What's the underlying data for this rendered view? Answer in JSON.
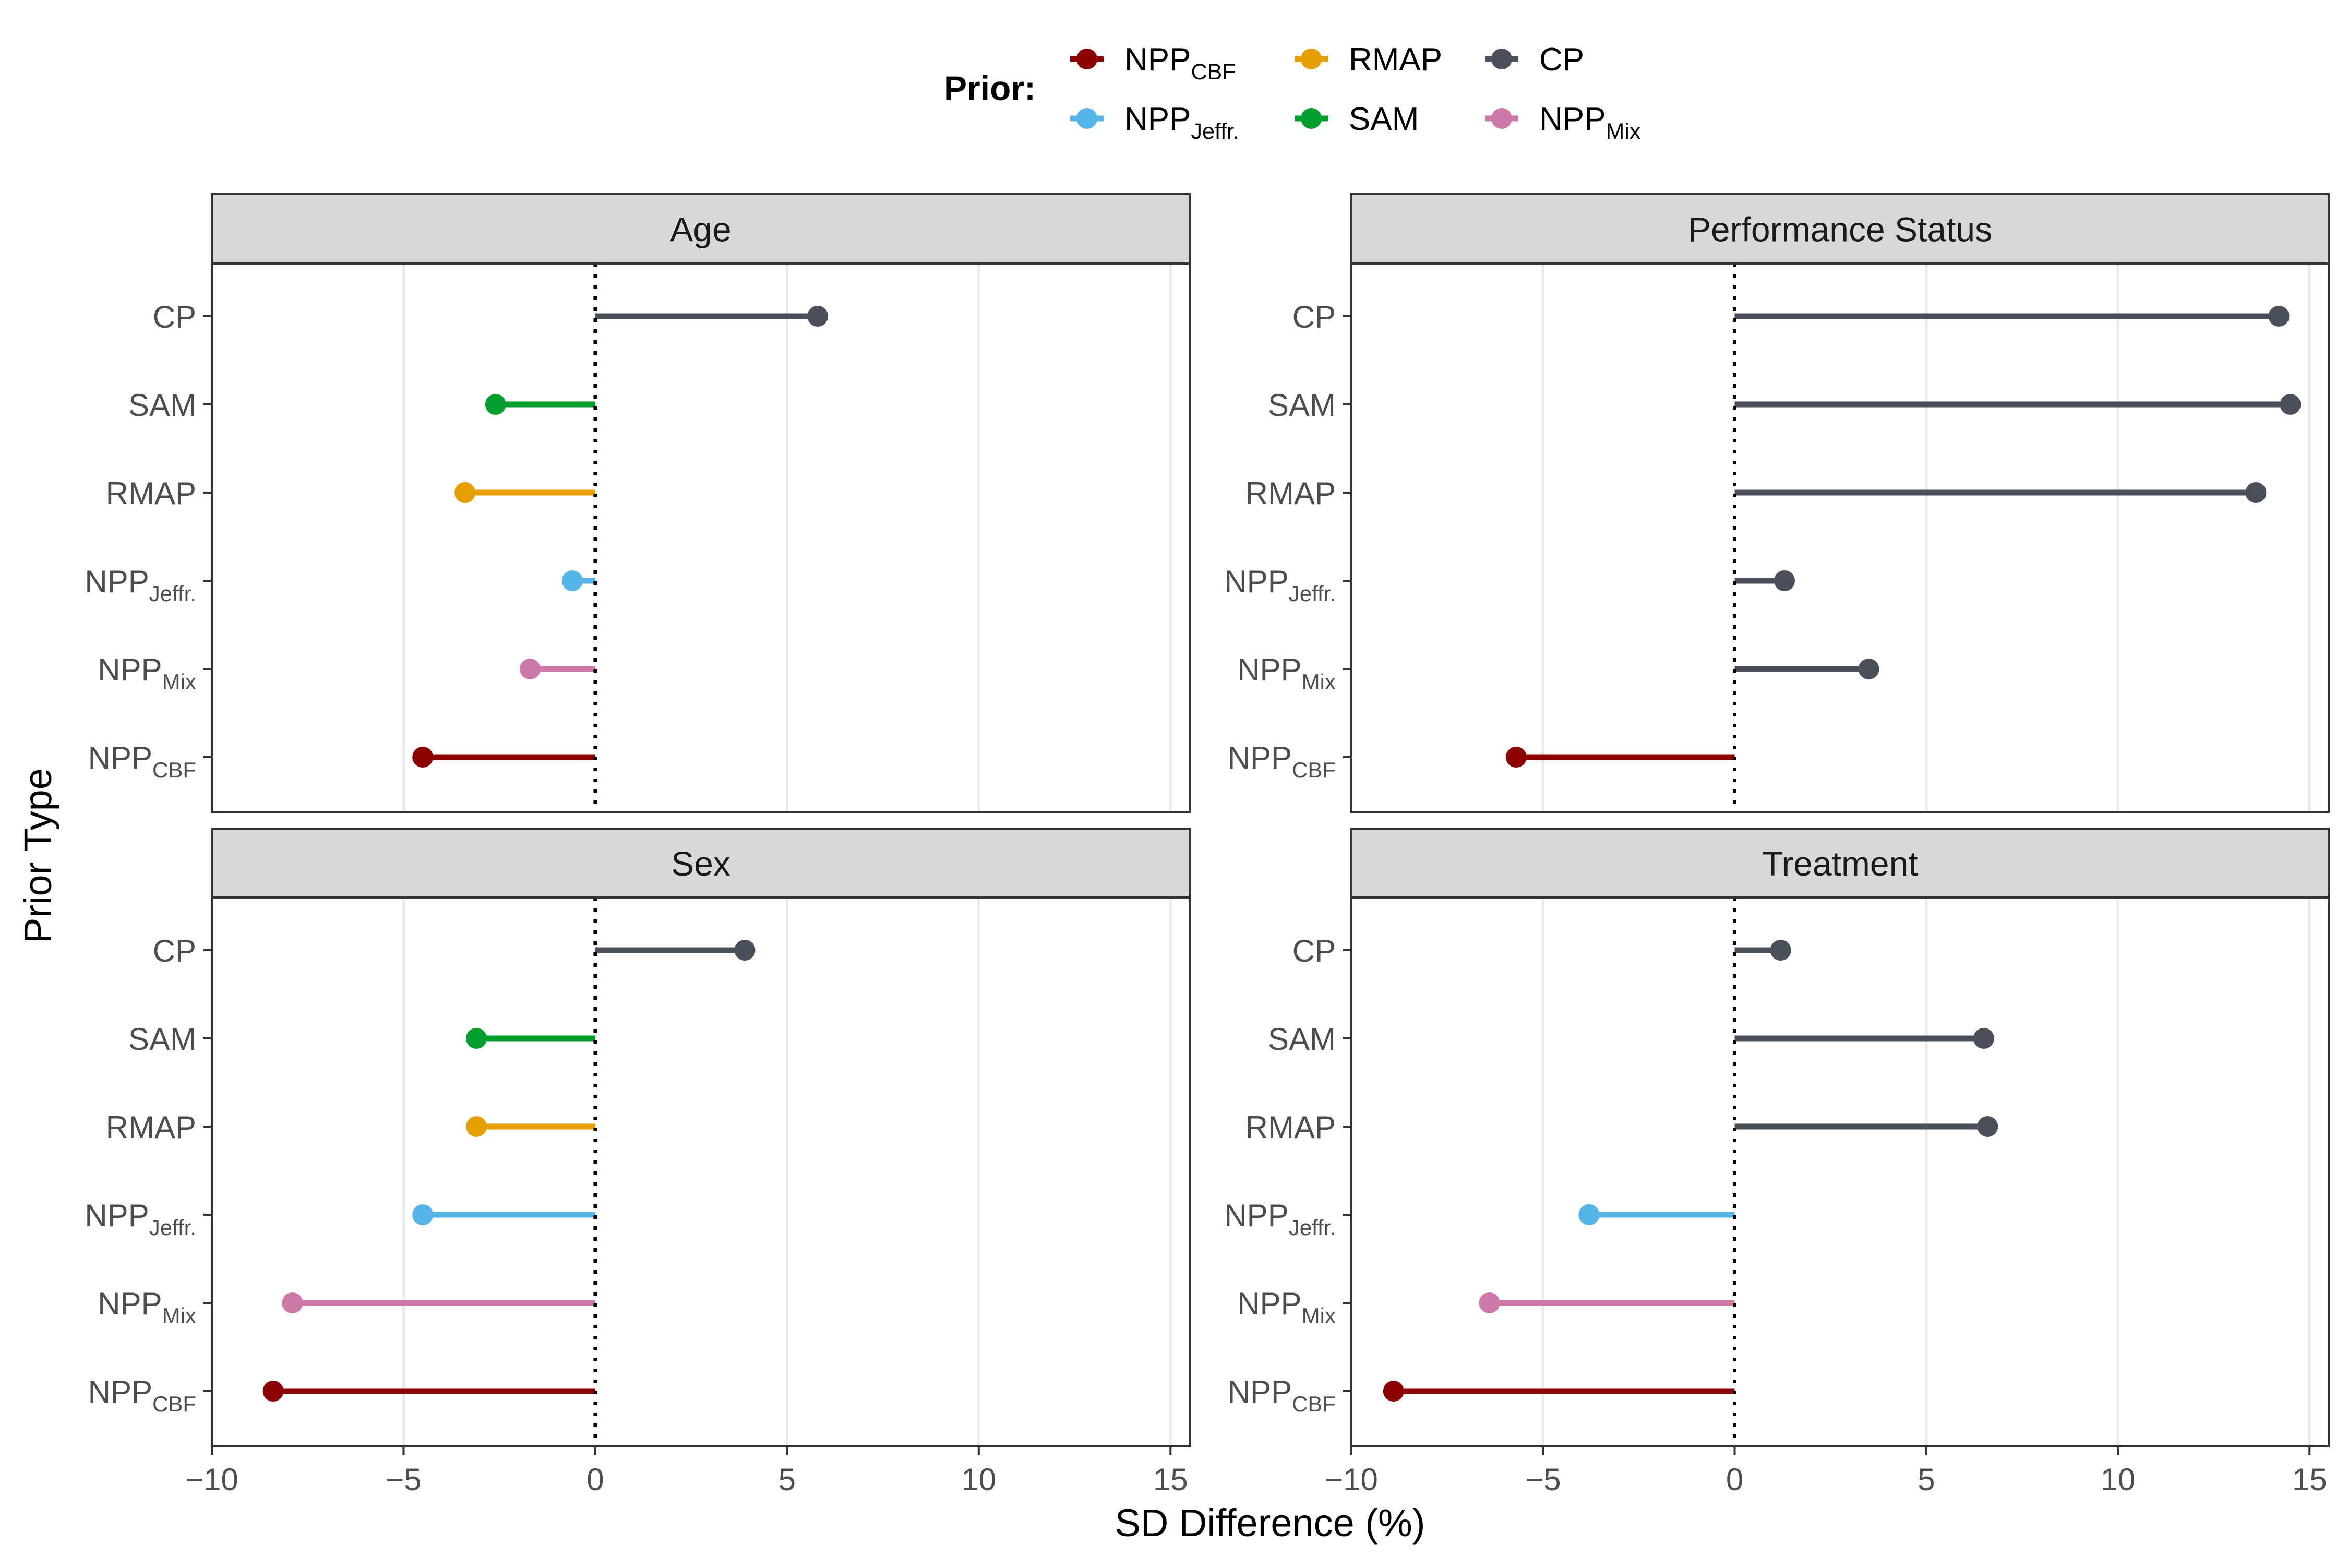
{
  "chart_data": {
    "type": "lollipop",
    "xlabel": "SD Difference (%)",
    "ylabel": "Prior Type",
    "xlim": [
      -10,
      15.5
    ],
    "x_ticks": [
      -10,
      -5,
      0,
      5,
      10,
      15
    ],
    "x_tick_labels": [
      "−10",
      "−5",
      "0",
      "5",
      "10",
      "15"
    ],
    "reference_line_x": 0,
    "grid": "vertical major lines",
    "legend": {
      "position": "top",
      "title": "Prior:",
      "entries": [
        {
          "key": "NPP_CBF",
          "main": "NPP",
          "sub": "CBF",
          "color": "#8b0000"
        },
        {
          "key": "NPP_Jeffr",
          "main": "NPP",
          "sub": "Jeffr.",
          "color": "#56b4e9"
        },
        {
          "key": "RMAP",
          "main": "RMAP",
          "sub": "",
          "color": "#e69f00"
        },
        {
          "key": "SAM",
          "main": "SAM",
          "sub": "",
          "color": "#009e2f"
        },
        {
          "key": "CP",
          "main": "CP",
          "sub": "",
          "color": "#4a4f5a"
        },
        {
          "key": "NPP_Mix",
          "main": "NPP",
          "sub": "Mix",
          "color": "#cc79a7"
        }
      ]
    },
    "categories": [
      {
        "key": "CP",
        "main": "CP",
        "sub": ""
      },
      {
        "key": "SAM",
        "main": "SAM",
        "sub": ""
      },
      {
        "key": "RMAP",
        "main": "RMAP",
        "sub": ""
      },
      {
        "key": "NPP_Jeffr",
        "main": "NPP",
        "sub": "Jeffr."
      },
      {
        "key": "NPP_Mix",
        "main": "NPP",
        "sub": "Mix"
      },
      {
        "key": "NPP_CBF",
        "main": "NPP",
        "sub": "CBF"
      }
    ],
    "panels": [
      {
        "title": "Age",
        "values": {
          "CP": 5.8,
          "SAM": -2.6,
          "RMAP": -3.4,
          "NPP_Jeffr": -0.6,
          "NPP_Mix": -1.7,
          "NPP_CBF": -4.5
        },
        "colors": {
          "CP": "CP",
          "SAM": "SAM",
          "RMAP": "RMAP",
          "NPP_Jeffr": "NPP_Jeffr",
          "NPP_Mix": "NPP_Mix",
          "NPP_CBF": "NPP_CBF"
        }
      },
      {
        "title": "Performance Status",
        "values": {
          "CP": 14.2,
          "SAM": 14.5,
          "RMAP": 13.6,
          "NPP_Jeffr": 1.3,
          "NPP_Mix": 3.5,
          "NPP_CBF": -5.7
        },
        "colors": {
          "CP": "CP",
          "SAM": "CP",
          "RMAP": "CP",
          "NPP_Jeffr": "CP",
          "NPP_Mix": "CP",
          "NPP_CBF": "NPP_CBF"
        }
      },
      {
        "title": "Sex",
        "values": {
          "CP": 3.9,
          "SAM": -3.1,
          "RMAP": -3.1,
          "NPP_Jeffr": -4.5,
          "NPP_Mix": -7.9,
          "NPP_CBF": -8.4
        },
        "colors": {
          "CP": "CP",
          "SAM": "SAM",
          "RMAP": "RMAP",
          "NPP_Jeffr": "NPP_Jeffr",
          "NPP_Mix": "NPP_Mix",
          "NPP_CBF": "NPP_CBF"
        }
      },
      {
        "title": "Treatment",
        "values": {
          "CP": 1.2,
          "SAM": 6.5,
          "RMAP": 6.6,
          "NPP_Jeffr": -3.8,
          "NPP_Mix": -6.4,
          "NPP_CBF": -8.9
        },
        "colors": {
          "CP": "CP",
          "SAM": "CP",
          "RMAP": "CP",
          "NPP_Jeffr": "NPP_Jeffr",
          "NPP_Mix": "NPP_Mix",
          "NPP_CBF": "NPP_CBF"
        }
      }
    ]
  }
}
